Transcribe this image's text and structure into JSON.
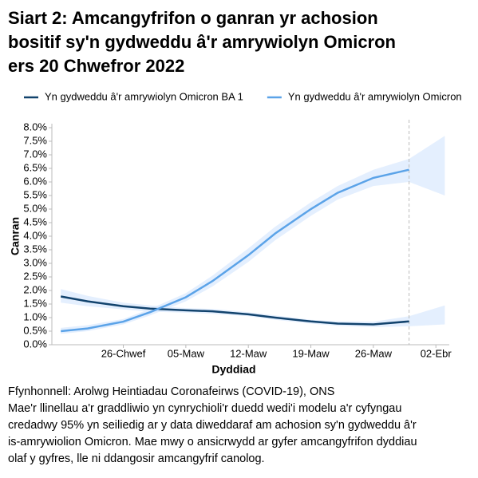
{
  "chart_data": {
    "type": "line",
    "title": [
      "Siart 2: Amcangyfrifon o ganran yr achosion",
      "bositif sy'n gydweddu â'r amrywiolyn Omicron",
      "ers 20 Chwefror 2022"
    ],
    "x_label": "Dyddiad",
    "y_label": "Canran",
    "x": [
      50,
      53,
      57,
      60,
      64,
      67,
      71,
      74,
      78,
      81,
      85,
      89,
      93
    ],
    "xlim": [
      49,
      93.5
    ],
    "xticks": [
      {
        "value": 57,
        "label": "26-Chwef"
      },
      {
        "value": 64,
        "label": "05-Maw"
      },
      {
        "value": 71,
        "label": "12-Maw"
      },
      {
        "value": 78,
        "label": "19-Maw"
      },
      {
        "value": 85,
        "label": "26-Maw"
      },
      {
        "value": 92,
        "label": "02-Ebr"
      }
    ],
    "vline_x": 89,
    "ylim": [
      0,
      8
    ],
    "yticks": [
      {
        "value": 0,
        "label": "0.0%"
      },
      {
        "value": 0.5,
        "label": "0.5%"
      },
      {
        "value": 1,
        "label": "1.0%"
      },
      {
        "value": 1.5,
        "label": "1.5%"
      },
      {
        "value": 2,
        "label": "2.0%"
      },
      {
        "value": 2.5,
        "label": "2.5%"
      },
      {
        "value": 3,
        "label": "3.0%"
      },
      {
        "value": 3.5,
        "label": "3.5%"
      },
      {
        "value": 4,
        "label": "4.0%"
      },
      {
        "value": 4.5,
        "label": "4.5%"
      },
      {
        "value": 5,
        "label": "5.0%"
      },
      {
        "value": 5.5,
        "label": "5.5%"
      },
      {
        "value": 6,
        "label": "6.0%"
      },
      {
        "value": 6.5,
        "label": "6.5%"
      },
      {
        "value": 7,
        "label": "7.0%"
      },
      {
        "value": 7.5,
        "label": "7.5%"
      },
      {
        "value": 8,
        "label": "8.0%"
      }
    ],
    "series": [
      {
        "name": "Yn gydweddu â'r amrywiolyn Omicron BA 1",
        "color": "#12436d",
        "values": [
          1.78,
          1.6,
          1.42,
          1.33,
          1.27,
          1.23,
          1.12,
          1.0,
          0.86,
          0.78,
          0.75,
          0.86,
          null
        ],
        "lower": [
          1.55,
          1.42,
          1.3,
          1.22,
          1.18,
          1.14,
          1.05,
          0.92,
          0.78,
          0.7,
          0.65,
          0.68,
          0.75
        ],
        "upper": [
          2.05,
          1.8,
          1.55,
          1.45,
          1.35,
          1.32,
          1.2,
          1.08,
          0.92,
          0.86,
          0.85,
          1.05,
          1.45
        ]
      },
      {
        "name": "Yn gydweddu â'r amrywiolyn Omicron",
        "color": "#5ba3e8",
        "values": [
          0.5,
          0.6,
          0.85,
          1.2,
          1.75,
          2.35,
          3.3,
          4.1,
          5.0,
          5.6,
          6.15,
          6.45,
          null
        ],
        "lower": [
          0.4,
          0.5,
          0.75,
          1.08,
          1.6,
          2.15,
          3.05,
          3.85,
          4.75,
          5.35,
          5.85,
          6.0,
          5.5
        ],
        "upper": [
          0.62,
          0.72,
          0.95,
          1.32,
          1.9,
          2.55,
          3.55,
          4.35,
          5.25,
          5.85,
          6.45,
          6.85,
          7.7
        ]
      }
    ],
    "band_color": "#dbeafd",
    "legend_position": "top",
    "notes": [
      "Ffynhonnell: Arolwg Heintiadau Coronafeirws (COVID-19), ONS",
      "Mae'r llinellau a'r graddliwio yn cynrychioli'r duedd wedi'i modelu a'r cyfyngau",
      "credadwy 95% yn seiliedig ar y data diweddaraf am achosion sy'n gydweddu â'r",
      "is-amrywiolion Omicron. Mae mwy o ansicrwydd ar gyfer amcangyfrifon dyddiau",
      "olaf y gyfres, lle ni ddangosir amcangyfrif canolog."
    ]
  }
}
